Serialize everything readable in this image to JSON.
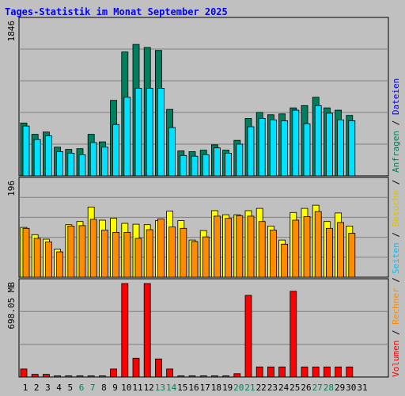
{
  "chart_data": [
    {
      "type": "bar",
      "panel": "top",
      "title": "Tages-Statistik im Monat September 2025",
      "ylabel_max": "1846",
      "ylim": [
        0,
        1846
      ],
      "categories": [
        "1",
        "2",
        "3",
        "4",
        "5",
        "6",
        "7",
        "8",
        "9",
        "10",
        "11",
        "12",
        "13",
        "14",
        "15",
        "16",
        "17",
        "18",
        "19",
        "20",
        "21",
        "22",
        "23",
        "24",
        "25",
        "26",
        "27",
        "28",
        "29",
        "30",
        "31"
      ],
      "series": [
        {
          "name": "Anfragen",
          "color": "#007f5f",
          "values": [
            700,
            550,
            580,
            380,
            350,
            360,
            550,
            450,
            1000,
            1640,
            1740,
            1700,
            1660,
            880,
            330,
            320,
            340,
            410,
            340,
            470,
            760,
            840,
            810,
            820,
            900,
            930,
            1040,
            900,
            870,
            800,
            0
          ]
        },
        {
          "name": "Dateien",
          "color": "#00e0ff",
          "values": [
            660,
            480,
            530,
            320,
            300,
            280,
            440,
            380,
            680,
            1040,
            1160,
            1160,
            1160,
            640,
            270,
            260,
            280,
            370,
            300,
            420,
            650,
            760,
            740,
            730,
            870,
            690,
            930,
            830,
            740,
            730,
            0
          ]
        }
      ]
    },
    {
      "type": "bar",
      "panel": "middle",
      "ylabel_max": "196",
      "ylim": [
        0,
        196
      ],
      "categories": [
        "1",
        "2",
        "3",
        "4",
        "5",
        "6",
        "7",
        "8",
        "9",
        "10",
        "11",
        "12",
        "13",
        "14",
        "15",
        "16",
        "17",
        "18",
        "19",
        "20",
        "21",
        "22",
        "23",
        "24",
        "25",
        "26",
        "27",
        "28",
        "29",
        "30",
        "31"
      ],
      "series": [
        {
          "name": "Besuche",
          "color": "#ffff00",
          "values": [
            110,
            94,
            84,
            62,
            116,
            123,
            155,
            126,
            130,
            119,
            117,
            116,
            125,
            146,
            125,
            82,
            103,
            147,
            138,
            138,
            147,
            152,
            113,
            82,
            143,
            152,
            159,
            123,
            142,
            113,
            0
          ]
        },
        {
          "name": "Rechner",
          "color": "#ff8c00",
          "values": [
            108,
            86,
            78,
            56,
            113,
            114,
            128,
            104,
            99,
            99,
            86,
            105,
            129,
            111,
            108,
            79,
            89,
            135,
            130,
            136,
            135,
            123,
            104,
            73,
            126,
            134,
            145,
            108,
            121,
            97,
            0
          ]
        }
      ]
    },
    {
      "type": "bar",
      "panel": "bottom",
      "ylabel_max": "698.05 MB",
      "ylim": [
        0,
        698.05
      ],
      "categories": [
        "1",
        "2",
        "3",
        "4",
        "5",
        "6",
        "7",
        "8",
        "9",
        "10",
        "11",
        "12",
        "13",
        "14",
        "15",
        "16",
        "17",
        "18",
        "19",
        "20",
        "21",
        "22",
        "23",
        "24",
        "25",
        "26",
        "27",
        "28",
        "29",
        "30",
        "31"
      ],
      "series": [
        {
          "name": "Volumen",
          "color": "#ff0000",
          "values": [
            60,
            20,
            20,
            8,
            8,
            8,
            8,
            8,
            60,
            698,
            140,
            698,
            135,
            60,
            8,
            8,
            8,
            8,
            8,
            25,
            610,
            75,
            75,
            75,
            640,
            75,
            75,
            75,
            75,
            75,
            0
          ]
        }
      ]
    }
  ],
  "x_labels": [
    {
      "text": "1",
      "weekend": false
    },
    {
      "text": "2",
      "weekend": false
    },
    {
      "text": "3",
      "weekend": false
    },
    {
      "text": "4",
      "weekend": false
    },
    {
      "text": "5",
      "weekend": false
    },
    {
      "text": "6",
      "weekend": true
    },
    {
      "text": "7",
      "weekend": true
    },
    {
      "text": "8",
      "weekend": false
    },
    {
      "text": "9",
      "weekend": false
    },
    {
      "text": "10",
      "weekend": false
    },
    {
      "text": "11",
      "weekend": false
    },
    {
      "text": "12",
      "weekend": false
    },
    {
      "text": "13",
      "weekend": true
    },
    {
      "text": "14",
      "weekend": true
    },
    {
      "text": "15",
      "weekend": false
    },
    {
      "text": "16",
      "weekend": false
    },
    {
      "text": "17",
      "weekend": false
    },
    {
      "text": "18",
      "weekend": false
    },
    {
      "text": "19",
      "weekend": false
    },
    {
      "text": "20",
      "weekend": true
    },
    {
      "text": "21",
      "weekend": true
    },
    {
      "text": "22",
      "weekend": false
    },
    {
      "text": "23",
      "weekend": false
    },
    {
      "text": "24",
      "weekend": false
    },
    {
      "text": "25",
      "weekend": false
    },
    {
      "text": "26",
      "weekend": false
    },
    {
      "text": "27",
      "weekend": true
    },
    {
      "text": "28",
      "weekend": true
    },
    {
      "text": "29",
      "weekend": false
    },
    {
      "text": "30",
      "weekend": false
    },
    {
      "text": "31",
      "weekend": false
    }
  ],
  "legend": {
    "top": [
      {
        "text": "Anfragen",
        "color": "#007f5f"
      },
      {
        "text": " / ",
        "color": "#000000"
      },
      {
        "text": "Dateien",
        "color": "#0000ff"
      }
    ],
    "middle": [
      {
        "text": "Seiten",
        "color": "#00c0ff"
      },
      {
        "text": " / ",
        "color": "#000000"
      },
      {
        "text": "Besuche",
        "color": "#e0c000"
      },
      {
        "text": " / ",
        "color": "#000000"
      }
    ],
    "bottom": [
      {
        "text": "Volumen",
        "color": "#ff0000"
      },
      {
        "text": " / ",
        "color": "#000000"
      },
      {
        "text": "Rechner",
        "color": "#ff8c00"
      },
      {
        "text": " / ",
        "color": "#000000"
      }
    ]
  },
  "colors": {
    "background": "#c0c0c0",
    "title": "#0000ff",
    "weekday_label": "#000000",
    "weekend_label": "#00805f",
    "grid": "#808080"
  }
}
